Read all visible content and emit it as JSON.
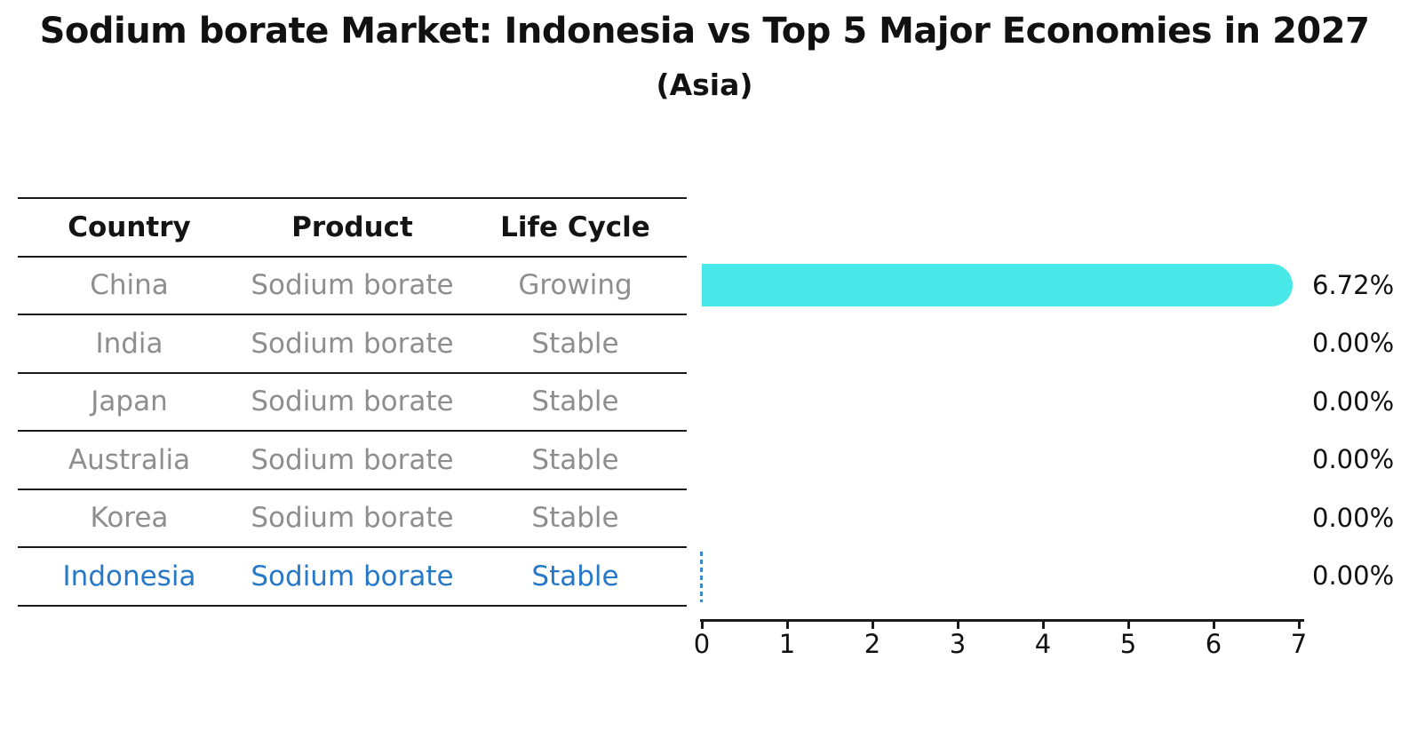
{
  "title": "Sodium borate Market: Indonesia vs Top 5 Major Economies in 2027",
  "subtitle": "(Asia)",
  "table": {
    "headers": [
      "Country",
      "Product",
      "Life Cycle"
    ],
    "rows": [
      {
        "country": "China",
        "product": "Sodium borate",
        "life_cycle": "Growing"
      },
      {
        "country": "India",
        "product": "Sodium borate",
        "life_cycle": "Stable"
      },
      {
        "country": "Japan",
        "product": "Sodium borate",
        "life_cycle": "Stable"
      },
      {
        "country": "Australia",
        "product": "Sodium borate",
        "life_cycle": "Stable"
      },
      {
        "country": "Korea",
        "product": "Sodium borate",
        "life_cycle": "Stable"
      },
      {
        "country": "Indonesia",
        "product": "Sodium borate",
        "life_cycle": "Stable"
      }
    ],
    "highlighted_row": "Indonesia"
  },
  "chart_data": {
    "type": "bar",
    "orientation": "horizontal",
    "title": "Sodium borate Market: Indonesia vs Top 5 Major Economies in 2027",
    "subtitle": "(Asia)",
    "categories": [
      "China",
      "India",
      "Japan",
      "Australia",
      "Korea",
      "Indonesia"
    ],
    "values": [
      6.72,
      0.0,
      0.0,
      0.0,
      0.0,
      0.0
    ],
    "value_labels": [
      "6.72%",
      "0.00%",
      "0.00%",
      "0.00%",
      "0.00%",
      "0.00%"
    ],
    "unit": "%",
    "xlim": [
      0,
      7.06
    ],
    "xticks": [
      0,
      1,
      2,
      3,
      4,
      5,
      6,
      7
    ],
    "xtick_labels": [
      "0",
      "1",
      "2",
      "3",
      "4",
      "5",
      "6",
      "7"
    ],
    "grid": false,
    "legend": false,
    "highlighted_category": "Indonesia",
    "zero_marker_note": "dashed vertical line at x=0 on Indonesia row"
  },
  "colors": {
    "bar": "#48e8e8",
    "highlight_text": "#2878c8",
    "zero_marker": "#3a87cf",
    "table_text": "#8e8e8e",
    "header_text": "#141414",
    "axis": "#1a1a1a",
    "background": "#ffffff"
  }
}
